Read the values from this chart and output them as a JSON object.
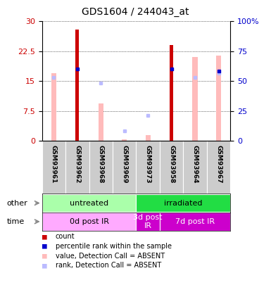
{
  "title": "GDS1604 / 244043_at",
  "samples": [
    "GSM93961",
    "GSM93962",
    "GSM93968",
    "GSM93969",
    "GSM93973",
    "GSM93958",
    "GSM93964",
    "GSM93967"
  ],
  "count_values": [
    0,
    28,
    0,
    0,
    0,
    24,
    0,
    0
  ],
  "count_present": [
    false,
    true,
    false,
    false,
    false,
    true,
    false,
    false
  ],
  "percentile_rank": [
    null,
    18,
    null,
    null,
    null,
    18,
    null,
    17.5
  ],
  "value_absent": [
    17,
    null,
    9.5,
    0.5,
    1.5,
    null,
    21,
    21.5
  ],
  "rank_absent": [
    16,
    null,
    14.5,
    2.5,
    6.5,
    null,
    16,
    17
  ],
  "ylim_left": [
    0,
    30
  ],
  "ylim_right": [
    0,
    100
  ],
  "yticks_left": [
    0,
    7.5,
    15,
    22.5,
    30
  ],
  "yticks_right": [
    0,
    25,
    50,
    75,
    100
  ],
  "yticklabels_right": [
    "0",
    "25",
    "50",
    "75",
    "100%"
  ],
  "groups_other": [
    {
      "label": "untreated",
      "start": 0,
      "end": 4,
      "color": "#aaffaa"
    },
    {
      "label": "irradiated",
      "start": 4,
      "end": 8,
      "color": "#22dd44"
    }
  ],
  "groups_time": [
    {
      "label": "0d post IR",
      "start": 0,
      "end": 4,
      "color": "#ffaaff"
    },
    {
      "label": "3d post\nIR",
      "start": 4,
      "end": 5,
      "color": "#cc00cc"
    },
    {
      "label": "7d post IR",
      "start": 5,
      "end": 8,
      "color": "#cc00cc"
    }
  ],
  "count_color": "#cc0000",
  "percentile_color": "#0000cc",
  "value_absent_color": "#ffbbbb",
  "rank_absent_color": "#bbbbff",
  "bg_color": "#cccccc",
  "plot_bg": "#ffffff",
  "left_tick_color": "#cc0000",
  "right_tick_color": "#0000cc",
  "legend_items": [
    {
      "color": "#cc0000",
      "label": "count"
    },
    {
      "color": "#0000cc",
      "label": "percentile rank within the sample"
    },
    {
      "color": "#ffbbbb",
      "label": "value, Detection Call = ABSENT"
    },
    {
      "color": "#bbbbff",
      "label": "rank, Detection Call = ABSENT"
    }
  ]
}
